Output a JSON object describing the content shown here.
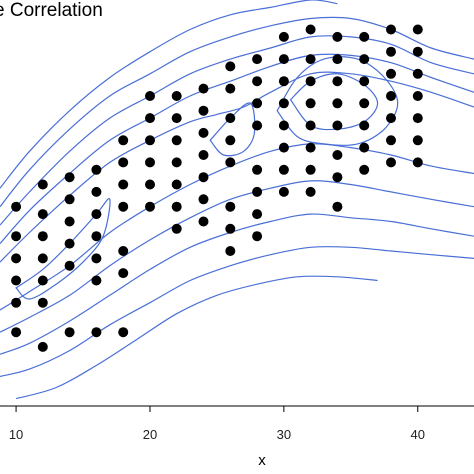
{
  "chart_data": {
    "type": "scatter",
    "title": "e Correlation",
    "xlabel": "x",
    "ylabel": "",
    "xlim": [
      8.8,
      44.2
    ],
    "ylim": [
      -2.0,
      9.0
    ],
    "x_ticks": [
      10,
      20,
      30,
      40
    ],
    "x_tick_labels": [
      "10",
      "20",
      "30",
      "40"
    ],
    "grid": false,
    "legend": "none",
    "colors": {
      "points": "#000000",
      "contours": "#4a6fd6",
      "background": "#ffffff"
    },
    "series": [
      {
        "points": [
          {
            "x": 10,
            "y": 0.0
          },
          {
            "x": 10,
            "y": 0.8
          },
          {
            "x": 10,
            "y": 1.4
          },
          {
            "x": 10,
            "y": 2.0
          },
          {
            "x": 10,
            "y": 2.6
          },
          {
            "x": 10,
            "y": 3.4
          },
          {
            "x": 12,
            "y": -0.4
          },
          {
            "x": 12,
            "y": 0.8
          },
          {
            "x": 12,
            "y": 1.4
          },
          {
            "x": 12,
            "y": 2.0
          },
          {
            "x": 12,
            "y": 2.6
          },
          {
            "x": 12,
            "y": 3.2
          },
          {
            "x": 12,
            "y": 4.0
          },
          {
            "x": 14,
            "y": 0.0
          },
          {
            "x": 14,
            "y": 1.8
          },
          {
            "x": 14,
            "y": 2.4
          },
          {
            "x": 14,
            "y": 3.0
          },
          {
            "x": 14,
            "y": 3.6
          },
          {
            "x": 14,
            "y": 4.2
          },
          {
            "x": 16,
            "y": 0.0
          },
          {
            "x": 16,
            "y": 1.4
          },
          {
            "x": 16,
            "y": 2.0
          },
          {
            "x": 16,
            "y": 2.6
          },
          {
            "x": 16,
            "y": 3.2
          },
          {
            "x": 16,
            "y": 3.8
          },
          {
            "x": 16,
            "y": 4.4
          },
          {
            "x": 18,
            "y": 0.0
          },
          {
            "x": 18,
            "y": 1.6
          },
          {
            "x": 18,
            "y": 2.2
          },
          {
            "x": 18,
            "y": 3.4
          },
          {
            "x": 18,
            "y": 4.0
          },
          {
            "x": 18,
            "y": 4.6
          },
          {
            "x": 18,
            "y": 5.2
          },
          {
            "x": 20,
            "y": 3.4
          },
          {
            "x": 20,
            "y": 4.0
          },
          {
            "x": 20,
            "y": 4.6
          },
          {
            "x": 20,
            "y": 5.2
          },
          {
            "x": 20,
            "y": 5.8
          },
          {
            "x": 20,
            "y": 6.4
          },
          {
            "x": 22,
            "y": 2.8
          },
          {
            "x": 22,
            "y": 3.4
          },
          {
            "x": 22,
            "y": 4.0
          },
          {
            "x": 22,
            "y": 4.6
          },
          {
            "x": 22,
            "y": 5.2
          },
          {
            "x": 22,
            "y": 5.8
          },
          {
            "x": 22,
            "y": 6.4
          },
          {
            "x": 24,
            "y": 3.0
          },
          {
            "x": 24,
            "y": 3.6
          },
          {
            "x": 24,
            "y": 4.2
          },
          {
            "x": 24,
            "y": 4.8
          },
          {
            "x": 24,
            "y": 5.4
          },
          {
            "x": 24,
            "y": 6.0
          },
          {
            "x": 24,
            "y": 6.6
          },
          {
            "x": 26,
            "y": 2.2
          },
          {
            "x": 26,
            "y": 2.8
          },
          {
            "x": 26,
            "y": 3.4
          },
          {
            "x": 26,
            "y": 4.6
          },
          {
            "x": 26,
            "y": 5.2
          },
          {
            "x": 26,
            "y": 5.8
          },
          {
            "x": 26,
            "y": 6.6
          },
          {
            "x": 26,
            "y": 7.2
          },
          {
            "x": 28,
            "y": 2.6
          },
          {
            "x": 28,
            "y": 3.2
          },
          {
            "x": 28,
            "y": 3.8
          },
          {
            "x": 28,
            "y": 4.4
          },
          {
            "x": 28,
            "y": 5.6
          },
          {
            "x": 28,
            "y": 6.2
          },
          {
            "x": 28,
            "y": 6.8
          },
          {
            "x": 28,
            "y": 7.4
          },
          {
            "x": 30,
            "y": 3.8
          },
          {
            "x": 30,
            "y": 4.4
          },
          {
            "x": 30,
            "y": 5.0
          },
          {
            "x": 30,
            "y": 5.6
          },
          {
            "x": 30,
            "y": 6.2
          },
          {
            "x": 30,
            "y": 6.8
          },
          {
            "x": 30,
            "y": 7.4
          },
          {
            "x": 30,
            "y": 8.0
          },
          {
            "x": 32,
            "y": 3.8
          },
          {
            "x": 32,
            "y": 4.4
          },
          {
            "x": 32,
            "y": 5.0
          },
          {
            "x": 32,
            "y": 5.6
          },
          {
            "x": 32,
            "y": 6.2
          },
          {
            "x": 32,
            "y": 6.8
          },
          {
            "x": 32,
            "y": 7.4
          },
          {
            "x": 32,
            "y": 8.2
          },
          {
            "x": 34,
            "y": 3.4
          },
          {
            "x": 34,
            "y": 4.2
          },
          {
            "x": 34,
            "y": 4.8
          },
          {
            "x": 34,
            "y": 5.6
          },
          {
            "x": 34,
            "y": 6.2
          },
          {
            "x": 34,
            "y": 6.8
          },
          {
            "x": 34,
            "y": 7.4
          },
          {
            "x": 34,
            "y": 8.0
          },
          {
            "x": 36,
            "y": 4.4
          },
          {
            "x": 36,
            "y": 5.0
          },
          {
            "x": 36,
            "y": 5.6
          },
          {
            "x": 36,
            "y": 6.2
          },
          {
            "x": 36,
            "y": 6.8
          },
          {
            "x": 36,
            "y": 7.4
          },
          {
            "x": 36,
            "y": 8.0
          },
          {
            "x": 38,
            "y": 4.6
          },
          {
            "x": 38,
            "y": 5.2
          },
          {
            "x": 38,
            "y": 5.8
          },
          {
            "x": 38,
            "y": 6.4
          },
          {
            "x": 38,
            "y": 7.0
          },
          {
            "x": 38,
            "y": 7.6
          },
          {
            "x": 38,
            "y": 8.2
          },
          {
            "x": 40,
            "y": 4.6
          },
          {
            "x": 40,
            "y": 5.2
          },
          {
            "x": 40,
            "y": 5.8
          },
          {
            "x": 40,
            "y": 6.4
          },
          {
            "x": 40,
            "y": 7.0
          },
          {
            "x": 40,
            "y": 7.6
          },
          {
            "x": 40,
            "y": 8.2
          }
        ]
      }
    ],
    "contours": [
      {
        "points": [
          [
            8.8,
            3.9
          ],
          [
            11,
            4.9
          ],
          [
            14,
            6.0
          ],
          [
            17,
            6.9
          ],
          [
            20,
            7.6
          ],
          [
            23,
            8.2
          ],
          [
            26,
            8.6
          ],
          [
            29,
            8.8
          ],
          [
            32,
            9.0
          ],
          [
            34,
            8.9
          ]
        ]
      },
      {
        "points": [
          [
            8.8,
            3.4
          ],
          [
            11,
            4.4
          ],
          [
            14,
            5.5
          ],
          [
            17,
            6.4
          ],
          [
            20,
            7.0
          ],
          [
            23,
            7.6
          ],
          [
            26,
            8.0
          ],
          [
            29,
            8.3
          ],
          [
            32,
            8.5
          ],
          [
            35,
            8.5
          ],
          [
            38,
            8.2
          ],
          [
            41,
            7.7
          ],
          [
            44.2,
            7.4
          ]
        ]
      },
      {
        "points": [
          [
            8.8,
            2.9
          ],
          [
            11,
            3.8
          ],
          [
            14,
            4.9
          ],
          [
            17,
            5.8
          ],
          [
            20,
            6.4
          ],
          [
            23,
            7.0
          ],
          [
            26,
            7.4
          ],
          [
            29,
            7.7
          ],
          [
            32,
            8.0
          ],
          [
            35,
            8.0
          ],
          [
            38,
            7.8
          ],
          [
            41,
            7.3
          ],
          [
            44.2,
            7.0
          ]
        ]
      },
      {
        "points": [
          [
            8.8,
            2.4
          ],
          [
            11,
            3.3
          ],
          [
            14,
            4.3
          ],
          [
            17,
            5.2
          ],
          [
            20,
            5.8
          ],
          [
            23,
            6.4
          ],
          [
            26,
            6.8
          ],
          [
            29,
            7.2
          ],
          [
            32,
            7.5
          ],
          [
            35,
            7.5
          ],
          [
            38,
            7.3
          ],
          [
            41,
            6.9
          ],
          [
            44.2,
            6.5
          ]
        ]
      },
      {
        "points": [
          [
            8.8,
            1.9
          ],
          [
            11,
            2.7
          ],
          [
            14,
            3.7
          ],
          [
            17,
            4.6
          ],
          [
            20,
            5.2
          ],
          [
            23,
            5.7
          ],
          [
            25,
            5.9
          ],
          [
            27,
            6.1
          ],
          [
            29,
            6.5
          ],
          [
            32,
            7.0
          ],
          [
            35,
            7.0
          ],
          [
            38,
            6.8
          ],
          [
            41,
            6.5
          ],
          [
            44.2,
            6.1
          ]
        ]
      },
      {
        "points": [
          [
            10,
            1.2
          ],
          [
            12,
            1.7
          ],
          [
            14,
            2.4
          ],
          [
            16,
            3.2
          ],
          [
            17,
            3.6
          ],
          [
            16.5,
            2.6
          ],
          [
            15,
            1.9
          ],
          [
            13,
            1.3
          ],
          [
            11,
            0.9
          ],
          [
            10,
            1.2
          ]
        ],
        "closed": true
      },
      {
        "points": [
          [
            24.5,
            5.2
          ],
          [
            26,
            5.8
          ],
          [
            27.5,
            6.2
          ],
          [
            27.8,
            5.4
          ],
          [
            27,
            4.9
          ],
          [
            25.5,
            4.8
          ],
          [
            24.5,
            5.2
          ]
        ],
        "closed": true
      },
      {
        "points": [
          [
            30.5,
            6.3
          ],
          [
            32,
            6.8
          ],
          [
            34,
            7.0
          ],
          [
            36,
            6.7
          ],
          [
            37,
            6.2
          ],
          [
            36,
            5.7
          ],
          [
            34,
            5.5
          ],
          [
            32,
            5.6
          ],
          [
            30.5,
            6.3
          ]
        ],
        "closed": true
      },
      {
        "points": [
          [
            29.5,
            6.0
          ],
          [
            31,
            6.9
          ],
          [
            33,
            7.4
          ],
          [
            35.5,
            7.4
          ],
          [
            37.5,
            6.9
          ],
          [
            38.5,
            6.2
          ],
          [
            37.5,
            5.5
          ],
          [
            35.5,
            5.1
          ],
          [
            33,
            5.1
          ],
          [
            31,
            5.3
          ],
          [
            29.5,
            6.0
          ]
        ],
        "closed": true
      },
      {
        "points": [
          [
            8.8,
            0.6
          ],
          [
            11,
            1.1
          ],
          [
            14,
            1.8
          ],
          [
            17,
            2.7
          ],
          [
            20,
            3.4
          ],
          [
            23,
            4.0
          ],
          [
            26,
            4.5
          ],
          [
            29,
            4.9
          ],
          [
            32,
            5.1
          ],
          [
            35,
            5.0
          ],
          [
            38,
            4.8
          ],
          [
            41,
            4.5
          ],
          [
            44.2,
            4.3
          ]
        ]
      },
      {
        "points": [
          [
            8.8,
            0.0
          ],
          [
            11,
            0.4
          ],
          [
            14,
            1.0
          ],
          [
            17,
            1.8
          ],
          [
            20,
            2.5
          ],
          [
            23,
            3.1
          ],
          [
            26,
            3.6
          ],
          [
            29,
            3.9
          ],
          [
            32,
            4.1
          ],
          [
            35,
            4.0
          ],
          [
            38,
            3.8
          ],
          [
            41,
            3.6
          ],
          [
            44.2,
            3.4
          ]
        ]
      },
      {
        "points": [
          [
            8.8,
            -0.6
          ],
          [
            11,
            -0.3
          ],
          [
            14,
            0.3
          ],
          [
            17,
            1.0
          ],
          [
            20,
            1.7
          ],
          [
            23,
            2.3
          ],
          [
            26,
            2.7
          ],
          [
            29,
            3.0
          ],
          [
            32,
            3.2
          ],
          [
            35,
            3.1
          ],
          [
            38,
            3.0
          ],
          [
            41,
            2.8
          ],
          [
            44.2,
            2.6
          ]
        ]
      },
      {
        "points": [
          [
            8.8,
            -1.2
          ],
          [
            11,
            -1.0
          ],
          [
            14,
            -0.5
          ],
          [
            17,
            0.2
          ],
          [
            20,
            0.8
          ],
          [
            23,
            1.4
          ],
          [
            26,
            1.8
          ],
          [
            29,
            2.1
          ],
          [
            32,
            2.3
          ],
          [
            35,
            2.3
          ],
          [
            38,
            2.2
          ],
          [
            41,
            2.1
          ],
          [
            44.2,
            2.0
          ]
        ]
      },
      {
        "points": [
          [
            10,
            -1.8
          ],
          [
            13,
            -1.5
          ],
          [
            16,
            -0.9
          ],
          [
            19,
            -0.2
          ],
          [
            22,
            0.5
          ],
          [
            25,
            1.0
          ],
          [
            28,
            1.3
          ],
          [
            31,
            1.5
          ],
          [
            34,
            1.5
          ],
          [
            37,
            1.4
          ]
        ]
      }
    ]
  }
}
